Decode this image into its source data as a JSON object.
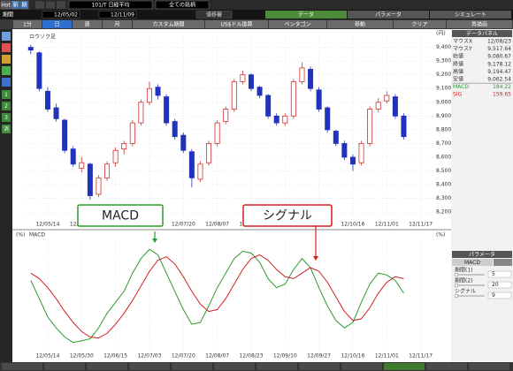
{
  "toolbar": {
    "row1": [
      "Hot",
      "新",
      "期",
      "101/T 日経平均",
      "全ての銘柄"
    ],
    "row2": {
      "period_label": "期間",
      "from": "12/05/02",
      "to": "12/11/09",
      "button": "値移審",
      "tabs": [
        "データ",
        "パラメータ",
        "シミュレート"
      ]
    },
    "row3": [
      "1分",
      "日",
      "週",
      "月",
      "カスタム期間",
      "US$ドル換算",
      "ペンタゴン",
      "移動",
      "クリア",
      "再描画"
    ]
  },
  "sidebar": [
    "1",
    "2",
    "3",
    "消"
  ],
  "chart_data": [
    {
      "type": "candlestick",
      "label": "ロウソク足",
      "axis_unit": "(円)",
      "up_color": "#d03030",
      "down_color": "#2233bb",
      "grid": true,
      "categories": [
        null,
        null,
        "12/05/14",
        null,
        null,
        null,
        "12/05/30",
        null,
        null,
        null,
        "12/06/15",
        null,
        null,
        null,
        "12/07/03",
        null,
        null,
        null,
        "12/07/20",
        null,
        null,
        null,
        "12/08/07",
        null,
        null,
        null,
        "12/08/23",
        null,
        null,
        null,
        "12/09/10",
        null,
        null,
        null,
        "12/09/27",
        null,
        null,
        null,
        "12/10/16",
        null,
        null,
        null,
        "12/11/01",
        null,
        null,
        null,
        "12/11/17",
        null
      ],
      "ohlc": [
        [
          9400,
          9420,
          9350,
          9380
        ],
        [
          9360,
          9370,
          9080,
          9100
        ],
        [
          9080,
          9110,
          8930,
          8950
        ],
        [
          8960,
          8990,
          8860,
          8880
        ],
        [
          8870,
          8880,
          8630,
          8650
        ],
        [
          8660,
          8680,
          8530,
          8550
        ],
        [
          8520,
          8600,
          8490,
          8560
        ],
        [
          8550,
          8560,
          8290,
          8320
        ],
        [
          8330,
          8470,
          8310,
          8450
        ],
        [
          8450,
          8570,
          8430,
          8550
        ],
        [
          8560,
          8670,
          8530,
          8650
        ],
        [
          8660,
          8720,
          8620,
          8700
        ],
        [
          8700,
          8870,
          8680,
          8850
        ],
        [
          8850,
          9020,
          8830,
          9000
        ],
        [
          9000,
          9150,
          8980,
          9100
        ],
        [
          9110,
          9130,
          9020,
          9050
        ],
        [
          9040,
          9060,
          8830,
          8850
        ],
        [
          8860,
          8880,
          8730,
          8750
        ],
        [
          8760,
          8780,
          8630,
          8650
        ],
        [
          8640,
          8660,
          8380,
          8450
        ],
        [
          8440,
          8570,
          8420,
          8550
        ],
        [
          8560,
          8720,
          8540,
          8700
        ],
        [
          8700,
          8870,
          8680,
          8850
        ],
        [
          8860,
          8970,
          8840,
          8950
        ],
        [
          8950,
          9170,
          8930,
          9150
        ],
        [
          9150,
          9230,
          9130,
          9200
        ],
        [
          9200,
          9210,
          9080,
          9100
        ],
        [
          9110,
          9120,
          9030,
          9050
        ],
        [
          9050,
          9060,
          8880,
          8900
        ],
        [
          8900,
          8920,
          8830,
          8850
        ],
        [
          8850,
          8920,
          8830,
          8900
        ],
        [
          8900,
          9170,
          8880,
          9150
        ],
        [
          9150,
          9290,
          9130,
          9250
        ],
        [
          9240,
          9260,
          9080,
          9100
        ],
        [
          9090,
          9110,
          8930,
          8950
        ],
        [
          8960,
          8970,
          8780,
          8800
        ],
        [
          8790,
          8800,
          8680,
          8700
        ],
        [
          8700,
          8720,
          8580,
          8600
        ],
        [
          8600,
          8620,
          8500,
          8550
        ],
        [
          8560,
          8720,
          8540,
          8700
        ],
        [
          8700,
          8970,
          8680,
          8950
        ],
        [
          8950,
          9030,
          8930,
          9000
        ],
        [
          9010,
          9080,
          8990,
          9050
        ],
        [
          9040,
          9060,
          8880,
          8900
        ],
        [
          8900,
          8920,
          8730,
          8750
        ],
        null,
        null,
        null
      ],
      "ylim": [
        8150,
        9500
      ],
      "yticks": [
        {
          "value": 8200,
          "label": "8,200"
        },
        {
          "value": 8300,
          "label": "8,300"
        },
        {
          "value": 8400,
          "label": "8,400"
        },
        {
          "value": 8500,
          "label": "8,500"
        },
        {
          "value": 8600,
          "label": "8,600"
        },
        {
          "value": 8700,
          "label": "8,700"
        },
        {
          "value": 8800,
          "label": "8,800"
        },
        {
          "value": 8900,
          "label": "8,900"
        },
        {
          "value": 9000,
          "label": "9,000"
        },
        {
          "value": 9100,
          "label": "9,100"
        },
        {
          "value": 9200,
          "label": "9,200"
        },
        {
          "value": 9300,
          "label": "9,300"
        },
        {
          "value": 9400,
          "label": "9,400"
        }
      ]
    },
    {
      "type": "line",
      "label": "MACD",
      "axis_unit": "(%)",
      "grid": true,
      "categories": [
        null,
        null,
        "12/05/14",
        null,
        null,
        null,
        "12/05/30",
        null,
        null,
        null,
        "12/06/15",
        null,
        null,
        null,
        "12/07/03",
        null,
        null,
        null,
        "12/07/20",
        null,
        null,
        null,
        "12/08/07",
        null,
        null,
        null,
        "12/08/23",
        null,
        null,
        null,
        "12/09/10",
        null,
        null,
        null,
        "12/09/27",
        null,
        null,
        null,
        "12/10/16",
        null,
        null,
        null,
        "12/11/01",
        null,
        null,
        null,
        "12/11/17",
        null
      ],
      "ylim": [
        -300,
        300
      ],
      "series": [
        {
          "name": "MACD",
          "color": "#2e9a2e",
          "values": [
            80,
            -20,
            -120,
            -180,
            -230,
            -260,
            -250,
            -240,
            -180,
            -100,
            -40,
            20,
            120,
            200,
            250,
            220,
            120,
            20,
            -80,
            -160,
            -150,
            -60,
            40,
            120,
            200,
            240,
            230,
            180,
            90,
            40,
            60,
            140,
            200,
            150,
            40,
            -60,
            -140,
            -180,
            -150,
            -40,
            60,
            120,
            110,
            80,
            10,
            null,
            null,
            null
          ]
        },
        {
          "name": "シグナル",
          "color": "#d02020",
          "values": [
            120,
            90,
            40,
            -20,
            -90,
            -150,
            -200,
            -230,
            -235,
            -210,
            -160,
            -100,
            -30,
            50,
            130,
            190,
            210,
            170,
            100,
            20,
            -50,
            -90,
            -80,
            -20,
            60,
            140,
            200,
            220,
            190,
            140,
            100,
            90,
            120,
            150,
            130,
            70,
            -10,
            -90,
            -140,
            -130,
            -70,
            10,
            70,
            100,
            90,
            null,
            null,
            null
          ]
        }
      ]
    }
  ],
  "data_panel": {
    "title": "データパネル",
    "rows": [
      {
        "label": "マウスX",
        "value": "12/08/23"
      },
      {
        "label": "マウスY",
        "value": "9,517.64"
      },
      {
        "label": "始値",
        "value": "9,080.67"
      },
      {
        "label": "終値",
        "value": "9,178.12"
      },
      {
        "label": "高値",
        "value": "9,194.47"
      },
      {
        "label": "安値",
        "value": "9,062.54"
      },
      {
        "label": "MACD",
        "value": "184.22"
      },
      {
        "label": "SIG",
        "value": "159.65"
      }
    ]
  },
  "params": {
    "title": "パラメータ",
    "indicator": "MACD",
    "rows": [
      {
        "label": "期間(1)",
        "value": 5
      },
      {
        "label": "期間(2)",
        "value": 20
      },
      {
        "label": "シグナル",
        "value": 9
      }
    ]
  }
}
